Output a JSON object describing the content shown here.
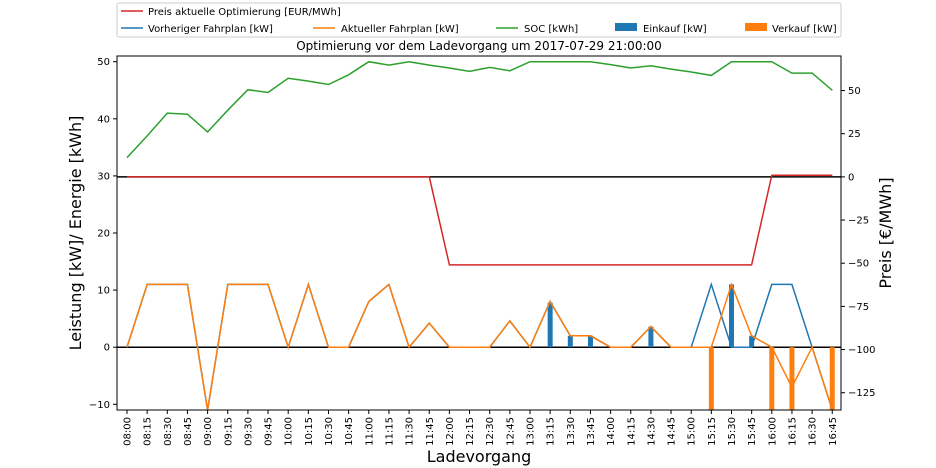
{
  "chart_data": {
    "type": "line",
    "title": "Optimierung vor dem Ladevorgang um 2017-07-29 21:00:00",
    "xlabel": "Ladevorgang",
    "ylabel_left": "Leistung [kW]/ Energie [kWh]",
    "ylabel_right": "Preis [€/MWh]",
    "ylim_left": [
      -11,
      51
    ],
    "ylim_right": [
      -135,
      70
    ],
    "yticks_left": [
      "−10",
      "0",
      "10",
      "20",
      "30",
      "40",
      "50"
    ],
    "yticks_right": [
      "−125",
      "−100",
      "−75",
      "−50",
      "−25",
      "0",
      "25",
      "50"
    ],
    "categories": [
      "08:00",
      "08:15",
      "08:30",
      "08:45",
      "09:00",
      "09:15",
      "09:30",
      "09:45",
      "10:00",
      "10:15",
      "10:30",
      "10:45",
      "11:00",
      "11:15",
      "11:30",
      "11:45",
      "12:00",
      "12:15",
      "12:30",
      "12:45",
      "13:00",
      "13:15",
      "13:30",
      "13:45",
      "14:00",
      "14:15",
      "14:30",
      "14:45",
      "15:00",
      "15:15",
      "15:30",
      "15:45",
      "16:00",
      "16:15",
      "16:30",
      "16:45"
    ],
    "legend": [
      {
        "label": "Preis aktuelle Optimierung [EUR/MWh]",
        "color": "#d62728",
        "kind": "line"
      },
      {
        "label": "Vorheriger Fahrplan [kW]",
        "color": "#1f77b4",
        "kind": "line"
      },
      {
        "label": "Aktueller Fahrplan [kW]",
        "color": "#ff7f0e",
        "kind": "line"
      },
      {
        "label": "SOC [kWh]",
        "color": "#2ca02c",
        "kind": "line"
      },
      {
        "label": "Einkauf [kW]",
        "color": "#1f77b4",
        "kind": "bar"
      },
      {
        "label": "Verkauf [kW]",
        "color": "#ff7f0e",
        "kind": "bar"
      }
    ],
    "series": [
      {
        "name": "Preis aktuelle Optimierung [EUR/MWh]",
        "axis": "right",
        "color": "#d62728",
        "values": [
          0,
          0,
          0,
          0,
          0,
          0,
          0,
          0,
          0,
          0,
          0,
          0,
          0,
          0,
          0,
          0,
          -51,
          -51,
          -51,
          -51,
          -51,
          -51,
          -51,
          -51,
          -51,
          -51,
          -51,
          -51,
          -51,
          -51,
          -51,
          -51,
          1,
          1,
          1,
          1
        ]
      },
      {
        "name": "SOC [kWh]",
        "axis": "left",
        "color": "#2ca02c",
        "values": [
          33.2,
          37.0,
          41.0,
          40.8,
          37.7,
          41.5,
          45.1,
          44.6,
          47.1,
          46.6,
          46.0,
          47.7,
          50,
          49.4,
          50,
          49.4,
          48.9,
          48.3,
          49.0,
          48.4,
          50,
          50,
          50,
          50,
          49.5,
          48.9,
          49.3,
          48.7,
          48.2,
          47.6,
          50,
          50,
          50,
          48.0,
          48.0,
          45.0
        ]
      },
      {
        "name": "Vorheriger Fahrplan [kW]",
        "axis": "left",
        "color": "#1f77b4",
        "values": [
          0,
          11,
          11,
          11,
          -11,
          11,
          11,
          11,
          0,
          11,
          0,
          0,
          8,
          11,
          0,
          4.2,
          0,
          0,
          0,
          4.6,
          0,
          8,
          2,
          2,
          0,
          0,
          3.6,
          0,
          0,
          11,
          0,
          0,
          11,
          11,
          0,
          -11
        ]
      },
      {
        "name": "Aktueller Fahrplan [kW]",
        "axis": "left",
        "color": "#ff7f0e",
        "values": [
          0,
          11,
          11,
          11,
          -11,
          11,
          11,
          11,
          0,
          11,
          0,
          0,
          8,
          11,
          0,
          4.2,
          0,
          0,
          0,
          4.6,
          0,
          8,
          2,
          2,
          0,
          0,
          3.6,
          0,
          0,
          0,
          11,
          2,
          0,
          -7,
          0,
          -11
        ]
      },
      {
        "name": "Einkauf [kW]",
        "axis": "left",
        "kind": "bar",
        "color": "#1f77b4",
        "values": [
          0,
          0,
          0,
          0,
          0,
          0,
          0,
          0,
          0,
          0,
          0,
          0,
          0,
          0,
          0,
          0,
          0,
          0,
          0,
          0,
          0,
          7.8,
          2,
          2,
          0,
          0,
          3.6,
          0,
          0,
          0,
          11,
          2,
          0,
          0,
          0,
          0
        ]
      },
      {
        "name": "Verkauf [kW]",
        "axis": "left",
        "kind": "bar",
        "color": "#ff7f0e",
        "values": [
          0,
          0,
          0,
          0,
          0,
          0,
          0,
          0,
          0,
          0,
          0,
          0,
          0,
          0,
          0,
          0,
          0,
          0,
          0,
          0,
          0,
          0,
          0,
          0,
          0,
          0,
          0,
          0,
          0,
          -11,
          0,
          0,
          -11,
          -11,
          0,
          -11
        ]
      }
    ]
  }
}
